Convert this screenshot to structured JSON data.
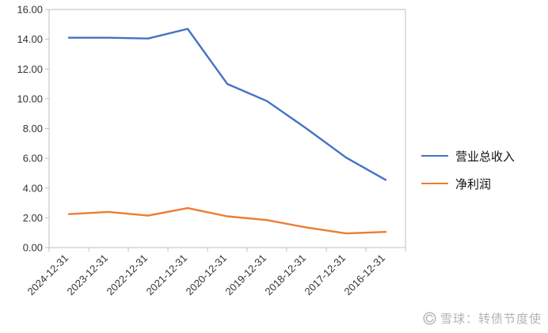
{
  "chart_data": {
    "type": "line",
    "categories": [
      "2024-12-31",
      "2023-12-31",
      "2022-12-31",
      "2021-12-31",
      "2020-12-31",
      "2019-12-31",
      "2018-12-31",
      "2017-12-31",
      "2016-12-31"
    ],
    "series": [
      {
        "name": "营业总收入",
        "color": "#4472c4",
        "values": [
          14.1,
          14.1,
          14.05,
          14.7,
          11.0,
          9.85,
          8.0,
          6.05,
          4.55
        ]
      },
      {
        "name": "净利润",
        "color": "#ed7d31",
        "values": [
          2.25,
          2.4,
          2.15,
          2.65,
          2.1,
          1.85,
          1.35,
          0.95,
          1.05
        ]
      }
    ],
    "title": "",
    "xlabel": "",
    "ylabel": "",
    "ylim": [
      0,
      16
    ],
    "ytick_step": 2,
    "ytick_labels": [
      "0.00",
      "2.00",
      "4.00",
      "6.00",
      "8.00",
      "10.00",
      "12.00",
      "14.00",
      "16.00"
    ],
    "grid": false,
    "legend_position": "right"
  },
  "axis_style": {
    "border_color": "#bfbfbf",
    "tick_color": "#bfbfbf",
    "label_color": "#333333"
  },
  "watermark": {
    "text": "雪球：转债节度使"
  }
}
